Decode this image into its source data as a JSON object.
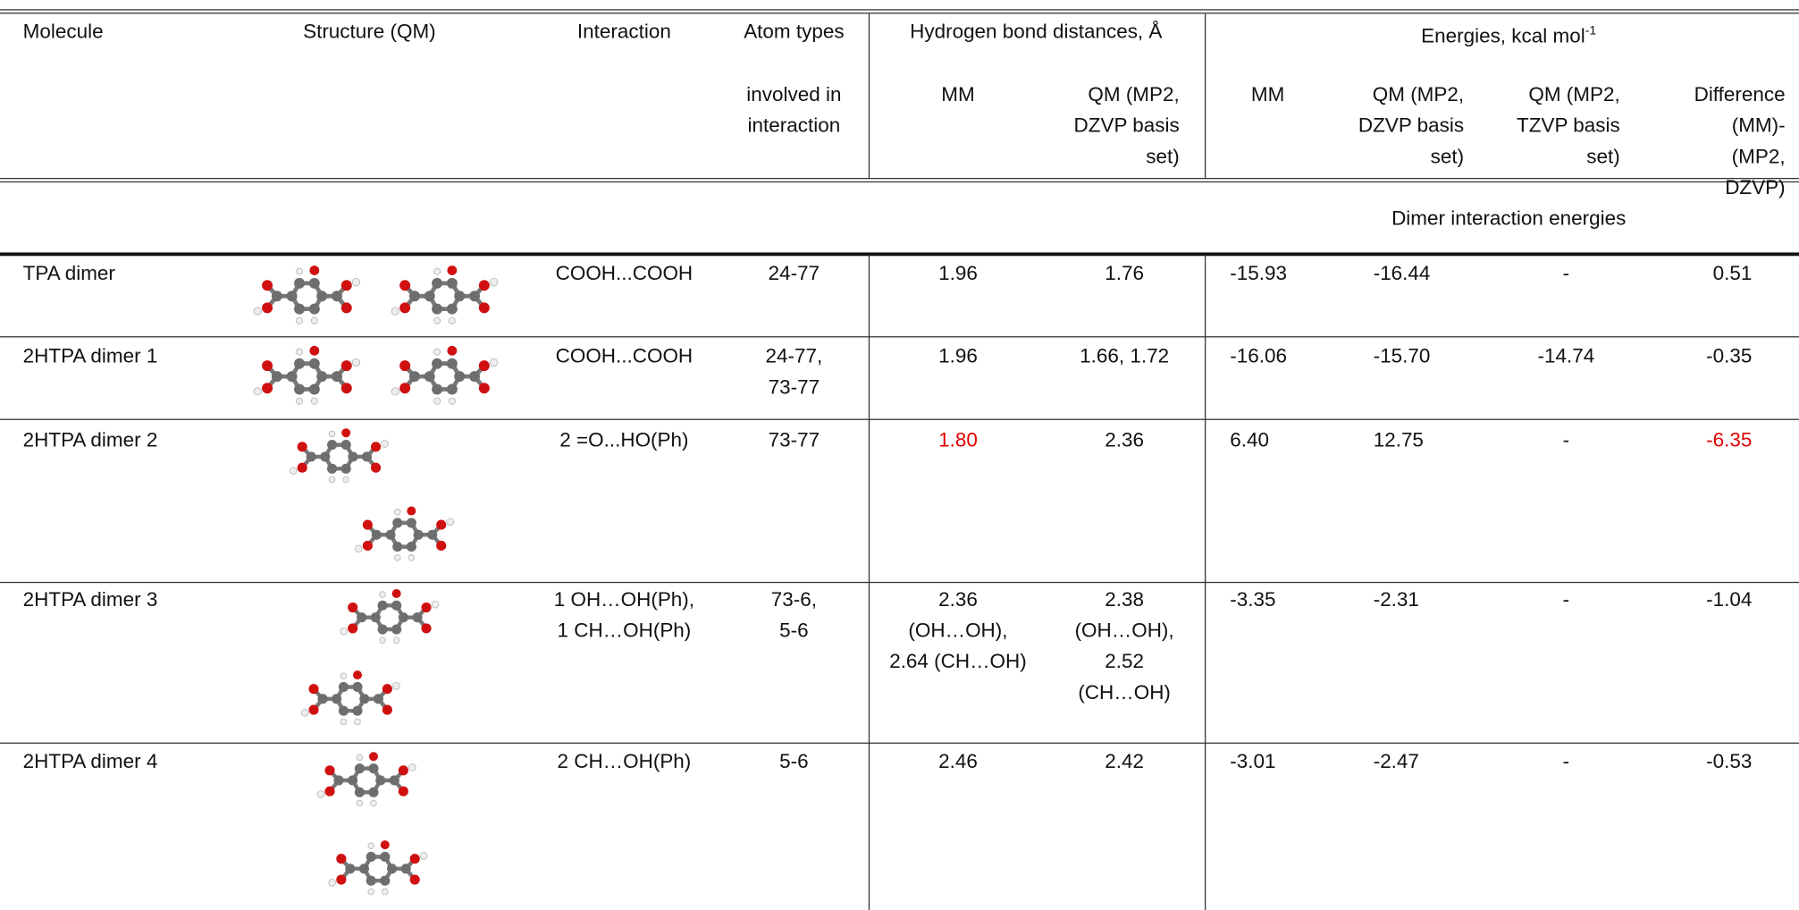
{
  "header": {
    "molecule": "Molecule",
    "structure": "Structure (QM)",
    "interaction": "Interaction",
    "atom_types": "Atom types",
    "atom_types_2": "involved in\ninteraction",
    "hbond": "Hydrogen bond distances, Å",
    "energies": "Energies, kcal mol",
    "energies_sup": "-1",
    "hb_mm": "MM",
    "hb_qm": "QM (MP2,\nDZVP basis\nset)",
    "e_mm": "MM",
    "e_qm_dzvp": "QM (MP2,\nDZVP basis\nset)",
    "e_qm_tzvp": "QM (MP2,\nTZVP  basis\nset)",
    "e_diff": "Difference\n(MM)-(MP2,\nDZVP)"
  },
  "section": "Dimer interaction energies",
  "rows": [
    {
      "molecule": "TPA dimer",
      "interaction": "COOH...COOH",
      "atom_types": "24-77",
      "hb_mm": "1.96",
      "hb_qm": "1.76",
      "e_mm": "-15.93",
      "e_qm_dzvp": "-16.44",
      "e_qm_tzvp": "-",
      "e_diff": "0.51"
    },
    {
      "molecule": "2HTPA dimer 1",
      "interaction": "COOH...COOH",
      "atom_types": "24-77,\n73-77",
      "hb_mm": "1.96",
      "hb_qm": "1.66, 1.72",
      "e_mm": "-16.06",
      "e_qm_dzvp": "-15.70",
      "e_qm_tzvp": "-14.74",
      "e_diff": "-0.35"
    },
    {
      "molecule": "2HTPA dimer 2",
      "interaction": "2 =O...HO(Ph)",
      "atom_types": "73-77",
      "hb_mm": "1.80",
      "hb_qm": "2.36",
      "e_mm": "6.40",
      "e_qm_dzvp": "12.75",
      "e_qm_tzvp": "-",
      "e_diff": "-6.35"
    },
    {
      "molecule": "2HTPA dimer 3",
      "interaction": "1 OH…OH(Ph),\n1 CH…OH(Ph)",
      "atom_types": "73-6,\n5-6",
      "hb_mm": "2.36\n(OH…OH),\n2.64 (CH…OH)",
      "hb_qm": "2.38\n(OH…OH),\n2.52\n(CH…OH)",
      "e_mm": "-3.35",
      "e_qm_dzvp": "-2.31",
      "e_qm_tzvp": "-",
      "e_diff": "-1.04"
    },
    {
      "molecule": "2HTPA dimer 4",
      "interaction": "2 CH…OH(Ph)",
      "atom_types": "5-6",
      "hb_mm": "2.46",
      "hb_qm": "2.42",
      "e_mm": "-3.01",
      "e_qm_dzvp": "-2.47",
      "e_qm_tzvp": "-",
      "e_diff": "-0.53"
    }
  ]
}
